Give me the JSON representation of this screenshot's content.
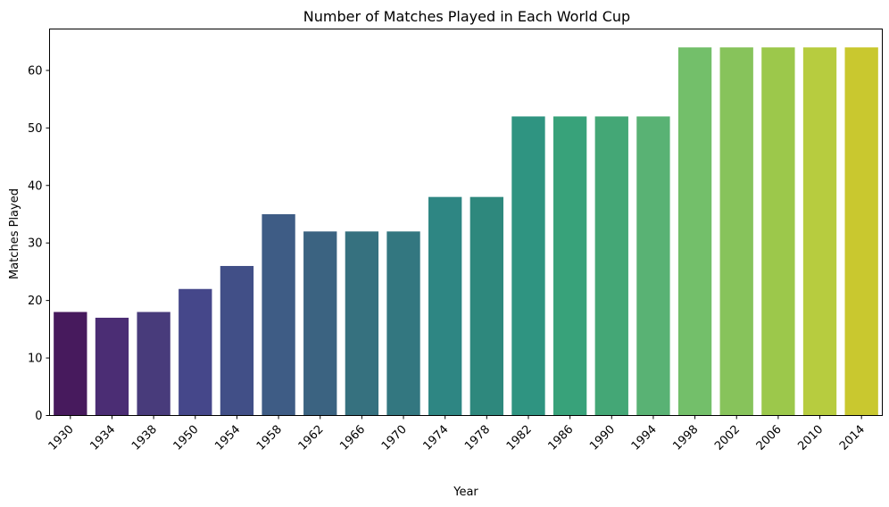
{
  "chart_data": {
    "type": "bar",
    "title": "Number of Matches Played in Each World Cup",
    "xlabel": "Year",
    "ylabel": "Matches Played",
    "categories": [
      "1930",
      "1934",
      "1938",
      "1950",
      "1954",
      "1958",
      "1962",
      "1966",
      "1970",
      "1974",
      "1978",
      "1982",
      "1986",
      "1990",
      "1994",
      "1998",
      "2002",
      "2006",
      "2010",
      "2014"
    ],
    "values": [
      18,
      17,
      18,
      22,
      26,
      35,
      32,
      32,
      32,
      38,
      38,
      52,
      52,
      52,
      52,
      64,
      64,
      64,
      64,
      64
    ],
    "ylim": [
      0,
      67.2
    ],
    "yticks": [
      0,
      10,
      20,
      30,
      40,
      50,
      60
    ],
    "grid": false,
    "colors": [
      "#471a5d",
      "#4b2d74",
      "#483b7b",
      "#45478a",
      "#414f87",
      "#3e5c85",
      "#3b6381",
      "#36717f",
      "#337780",
      "#2e8683",
      "#2e887d",
      "#2f9481",
      "#38a27a",
      "#44a776",
      "#59b274",
      "#73bf6a",
      "#87c35b",
      "#9cc84b",
      "#b7cc3f",
      "#c9c82f"
    ]
  }
}
